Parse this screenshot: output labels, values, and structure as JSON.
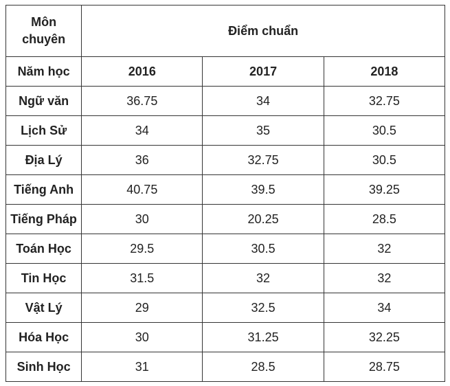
{
  "table": {
    "header": {
      "subject_line1": "Môn",
      "subject_line2": "chuyên",
      "title": "Điểm chuẩn"
    },
    "year_row": {
      "label": "Năm học",
      "years": [
        "2016",
        "2017",
        "2018"
      ]
    },
    "rows": [
      {
        "subject": "Ngữ văn",
        "values": [
          "36.75",
          "34",
          "32.75"
        ]
      },
      {
        "subject": "Lịch Sử",
        "values": [
          "34",
          "35",
          "30.5"
        ]
      },
      {
        "subject": "Địa Lý",
        "values": [
          "36",
          "32.75",
          "30.5"
        ]
      },
      {
        "subject": "Tiếng Anh",
        "values": [
          "40.75",
          "39.5",
          "39.25"
        ]
      },
      {
        "subject": "Tiếng Pháp",
        "values": [
          "30",
          "20.25",
          "28.5"
        ]
      },
      {
        "subject": "Toán Học",
        "values": [
          "29.5",
          "30.5",
          "32"
        ]
      },
      {
        "subject": "Tin Học",
        "values": [
          "31.5",
          "32",
          "32"
        ]
      },
      {
        "subject": "Vật Lý",
        "values": [
          "29",
          "32.5",
          "34"
        ]
      },
      {
        "subject": "Hóa Học",
        "values": [
          "30",
          "31.25",
          "32.25"
        ]
      },
      {
        "subject": "Sinh Học",
        "values": [
          "31",
          "28.5",
          "28.75"
        ]
      }
    ]
  }
}
